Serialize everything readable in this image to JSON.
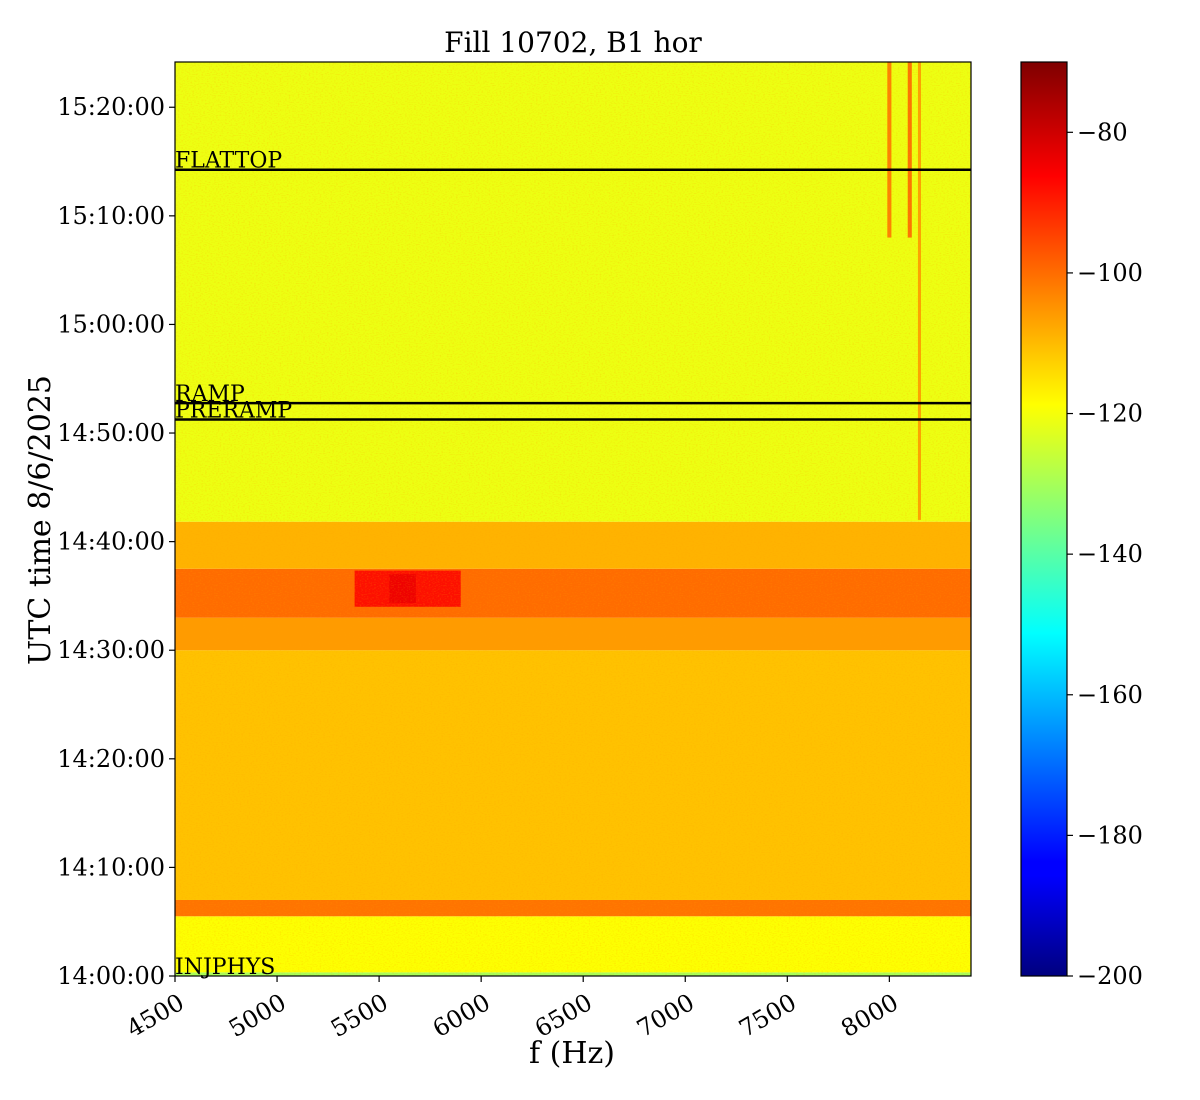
{
  "chart_data": {
    "type": "heatmap",
    "title": "Fill 10702, B1 hor",
    "xlabel": "f (Hz)",
    "ylabel": "UTC time 8/6/2025",
    "xlim": [
      4500,
      8400
    ],
    "ylim": [
      "14:00:00",
      "15:24:10"
    ],
    "x_ticks": [
      4500,
      5000,
      5500,
      6000,
      6500,
      7000,
      7500,
      8000
    ],
    "y_ticks": [
      "14:00:00",
      "14:10:00",
      "14:20:00",
      "14:30:00",
      "14:40:00",
      "14:50:00",
      "15:00:00",
      "15:10:00",
      "15:20:00"
    ],
    "colorbar": {
      "colormap": "jet",
      "range": [
        -200,
        -70
      ],
      "ticks": [
        -80,
        -100,
        -120,
        -140,
        -160,
        -180,
        -200
      ]
    },
    "events": [
      {
        "label": "FLATTOP",
        "time": "15:14:15"
      },
      {
        "label": "RAMP",
        "time": "14:52:45"
      },
      {
        "label": "PRERAMP",
        "time": "14:51:15"
      },
      {
        "label": "INJPHYS",
        "time": "14:00:00"
      }
    ],
    "regions": [
      {
        "time_from": "14:00:00",
        "time_to": "14:00:20",
        "level_db": -130
      },
      {
        "time_from": "14:00:20",
        "time_to": "14:05:30",
        "level_db": -119
      },
      {
        "time_from": "14:05:30",
        "time_to": "14:07:00",
        "level_db": -101
      },
      {
        "time_from": "14:07:00",
        "time_to": "14:30:00",
        "level_db": -111
      },
      {
        "time_from": "14:30:00",
        "time_to": "14:33:00",
        "level_db": -106
      },
      {
        "time_from": "14:33:00",
        "time_to": "14:37:30",
        "level_db": -100
      },
      {
        "time_from": "14:37:30",
        "time_to": "14:41:50",
        "level_db": -109
      },
      {
        "time_from": "14:41:50",
        "time_to": "15:24:10",
        "level_db": -121
      }
    ],
    "features": [
      {
        "f_from": 5550,
        "f_to": 5680,
        "time_from": "14:34:20",
        "time_to": "14:37:00",
        "level_db": -72
      },
      {
        "f_from": 5380,
        "f_to": 5900,
        "time_from": "14:34:00",
        "time_to": "14:37:20",
        "level_db": -86
      },
      {
        "f_from": 7990,
        "f_to": 8010,
        "time_from": "15:08:00",
        "time_to": "15:24:10",
        "level_db": -100
      },
      {
        "f_from": 8090,
        "f_to": 8110,
        "time_from": "15:08:00",
        "time_to": "15:24:10",
        "level_db": -98
      },
      {
        "f_from": 8140,
        "f_to": 8155,
        "time_from": "14:42:00",
        "time_to": "15:24:10",
        "level_db": -105
      }
    ]
  }
}
